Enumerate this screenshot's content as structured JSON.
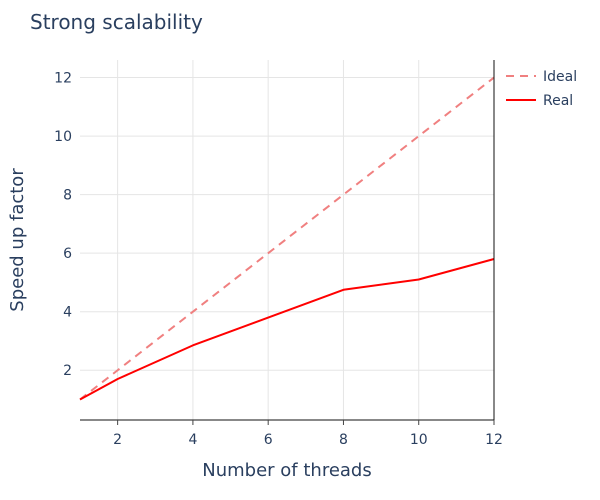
{
  "chart_data": {
    "type": "line",
    "title": "Strong scalability",
    "xlabel": "Number of threads",
    "ylabel": "Speed up factor",
    "xlim": [
      1,
      12
    ],
    "ylim": [
      0.3,
      12.6
    ],
    "xticks": [
      2,
      4,
      6,
      8,
      10,
      12
    ],
    "yticks": [
      2,
      4,
      6,
      8,
      10,
      12
    ],
    "grid": true,
    "legend_position": "top-right",
    "series": [
      {
        "name": "Ideal",
        "color": "#f08080",
        "dash": "dashed",
        "x": [
          1,
          2,
          4,
          6,
          8,
          10,
          12
        ],
        "y": [
          1,
          2,
          4,
          6,
          8,
          10,
          12
        ]
      },
      {
        "name": "Real",
        "color": "#ff0000",
        "dash": "solid",
        "x": [
          1,
          2,
          4,
          6,
          8,
          10,
          12
        ],
        "y": [
          1.0,
          1.7,
          2.85,
          3.8,
          4.75,
          5.1,
          5.8
        ]
      }
    ]
  }
}
